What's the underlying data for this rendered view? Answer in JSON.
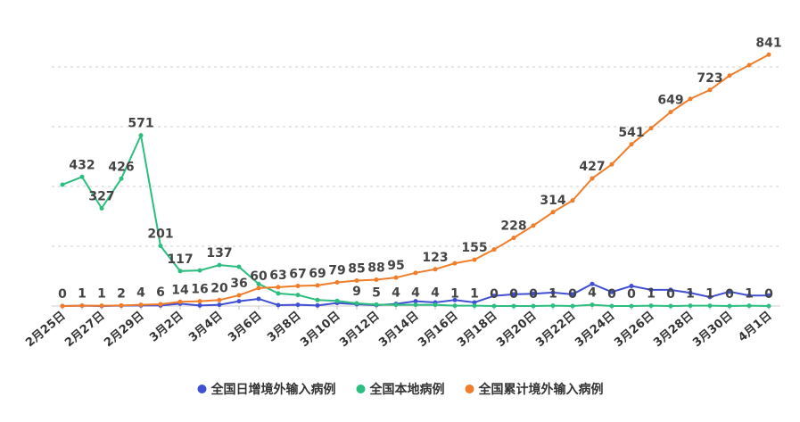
{
  "chart_data": {
    "type": "line",
    "categories": [
      "2月25日",
      null,
      "2月27日",
      null,
      "2月29日",
      null,
      "3月2日",
      null,
      "3月4日",
      null,
      "3月6日",
      null,
      "3月8日",
      null,
      "3月10日",
      null,
      "3月12日",
      null,
      "3月14日",
      null,
      "3月16日",
      null,
      "3月18日",
      null,
      "3月20日",
      null,
      "3月22日",
      null,
      "3月24日",
      null,
      "3月26日",
      null,
      "3月28日",
      null,
      "3月30日",
      null,
      "4月1日"
    ],
    "series": [
      {
        "name": "全国日增境外输入病例",
        "color": "#4150d2",
        "values": [
          0,
          1,
          0,
          1,
          2,
          2,
          8,
          2,
          4,
          16,
          24,
          3,
          4,
          2,
          10,
          6,
          3,
          7,
          16,
          12,
          20,
          12,
          34,
          39,
          41,
          45,
          39,
          74,
          47,
          67,
          54,
          54,
          44,
          30,
          48,
          35,
          35
        ]
      },
      {
        "name": "全国本地病例",
        "color": "#2dbd7e",
        "values": [
          406,
          432,
          327,
          426,
          571,
          201,
          117,
          119,
          137,
          131,
          74,
          42,
          37,
          20,
          17,
          9,
          5,
          4,
          4,
          4,
          1,
          1,
          0,
          0,
          0,
          1,
          0,
          4,
          0,
          0,
          1,
          0,
          1,
          1,
          0,
          1,
          0
        ],
        "value_labels": [
          null,
          432,
          327,
          426,
          571,
          201,
          117,
          null,
          137,
          null,
          null,
          null,
          null,
          null,
          null,
          9,
          5,
          4,
          4,
          4,
          1,
          1,
          0,
          0,
          0,
          1,
          0,
          4,
          0,
          0,
          1,
          0,
          1,
          1,
          0,
          1,
          0
        ]
      },
      {
        "name": "全国累计境外输入病例",
        "color": "#f07d2a",
        "values": [
          0,
          1,
          1,
          2,
          4,
          6,
          14,
          16,
          20,
          36,
          60,
          63,
          67,
          69,
          79,
          85,
          88,
          95,
          111,
          123,
          143,
          155,
          189,
          228,
          269,
          314,
          353,
          427,
          474,
          541,
          595,
          649,
          693,
          723,
          771,
          806,
          841
        ],
        "value_labels": [
          0,
          1,
          1,
          2,
          4,
          6,
          14,
          16,
          20,
          36,
          60,
          63,
          67,
          69,
          79,
          85,
          88,
          95,
          null,
          123,
          null,
          155,
          null,
          228,
          null,
          314,
          null,
          427,
          null,
          541,
          null,
          649,
          null,
          723,
          null,
          null,
          841
        ]
      }
    ],
    "ylim": [
      0,
      900
    ],
    "yticks": [
      0,
      200,
      400,
      600,
      800
    ],
    "grid": true,
    "legend": "bottom"
  }
}
